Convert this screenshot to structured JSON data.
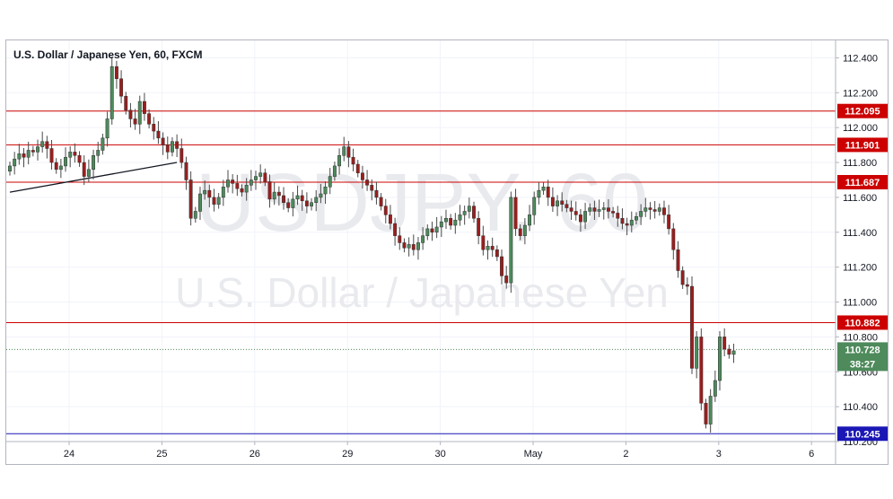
{
  "chart_data": {
    "type": "candlestick",
    "title": "U.S. Dollar / Japanese Yen, 60, FXCM",
    "watermark_symbol": "USDJPY, 60",
    "watermark_name": "U.S. Dollar / Japanese Yen",
    "ylim": [
      110.2,
      112.5
    ],
    "y_ticks": [
      "112.400",
      "112.200",
      "112.000",
      "111.800",
      "111.600",
      "111.400",
      "111.200",
      "111.000",
      "110.800",
      "110.600",
      "110.400",
      "110.200"
    ],
    "x_ticks": [
      "24",
      "25",
      "26",
      "29",
      "30",
      "May",
      "2",
      "3",
      "6"
    ],
    "x_tick_bar_index": [
      6,
      26,
      46,
      66,
      86,
      106,
      126,
      146,
      166
    ],
    "levels": [
      {
        "value": 112.095,
        "label": "112.095",
        "color": "#cc0000"
      },
      {
        "value": 111.901,
        "label": "111.901",
        "color": "#cc0000"
      },
      {
        "value": 111.687,
        "label": "111.687",
        "color": "#cc0000"
      },
      {
        "value": 110.882,
        "label": "110.882",
        "color": "#cc0000"
      },
      {
        "value": 110.245,
        "label": "110.245",
        "color": "#1a17b5"
      }
    ],
    "last_price": {
      "value": 110.728,
      "label": "110.728",
      "countdown": "38:27",
      "color": "#4e8a5b"
    },
    "trendline": {
      "from_bar": 0,
      "from_price": 111.63,
      "to_bar": 36,
      "to_price": 111.8
    },
    "bull_color": "#4d8a5c",
    "bear_color": "#9a1e1e",
    "closes": [
      111.78,
      111.82,
      111.85,
      111.83,
      111.87,
      111.86,
      111.89,
      111.92,
      111.88,
      111.8,
      111.76,
      111.78,
      111.83,
      111.86,
      111.84,
      111.8,
      111.72,
      111.76,
      111.84,
      111.87,
      111.94,
      112.05,
      112.35,
      112.28,
      112.18,
      112.1,
      112.05,
      112.02,
      112.15,
      112.08,
      112.02,
      111.98,
      111.94,
      111.9,
      111.86,
      111.92,
      111.88,
      111.8,
      111.7,
      111.48,
      111.52,
      111.62,
      111.64,
      111.6,
      111.56,
      111.6,
      111.66,
      111.7,
      111.68,
      111.65,
      111.63,
      111.67,
      111.7,
      111.72,
      111.74,
      111.69,
      111.59,
      111.63,
      111.61,
      111.57,
      111.54,
      111.59,
      111.61,
      111.58,
      111.55,
      111.57,
      111.6,
      111.62,
      111.66,
      111.72,
      111.78,
      111.84,
      111.89,
      111.83,
      111.79,
      111.74,
      111.7,
      111.67,
      111.64,
      111.6,
      111.55,
      111.5,
      111.45,
      111.38,
      111.34,
      111.31,
      111.33,
      111.3,
      111.34,
      111.38,
      111.42,
      111.4,
      111.43,
      111.46,
      111.48,
      111.44,
      111.47,
      111.5,
      111.52,
      111.55,
      111.48,
      111.38,
      111.3,
      111.32,
      111.3,
      111.26,
      111.15,
      111.11,
      111.6,
      111.42,
      111.38,
      111.44,
      111.5,
      111.6,
      111.64,
      111.66,
      111.6,
      111.55,
      111.58,
      111.56,
      111.54,
      111.52,
      111.5,
      111.46,
      111.52,
      111.54,
      111.52,
      111.53,
      111.54,
      111.52,
      111.51,
      111.48,
      111.45,
      111.44,
      111.47,
      111.49,
      111.52,
      111.54,
      111.53,
      111.52,
      111.54,
      111.5,
      111.42,
      111.3,
      111.18,
      111.1,
      111.09,
      110.62,
      110.8,
      110.42,
      110.3,
      110.46,
      110.55,
      110.8,
      110.73,
      110.7,
      110.72
    ]
  }
}
